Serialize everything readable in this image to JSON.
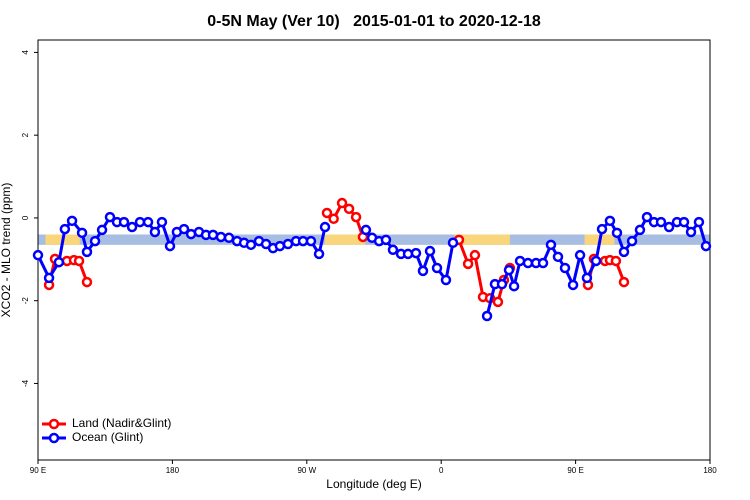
{
  "chart_data": {
    "type": "line",
    "title": "0-5N May (Ver 10)   2015-01-01 to 2020-12-18",
    "x_label": "Longitude (deg E)",
    "y_label": "XCO2 - MLO trend (ppm)",
    "xlim": [
      90,
      540
    ],
    "ylim": [
      -5.85,
      4.3
    ],
    "xticks": [
      {
        "value": 90,
        "label": "90 E"
      },
      180,
      {
        "value": 270,
        "label": "90 W"
      },
      {
        "value": 360,
        "label": "0"
      },
      {
        "value": 450,
        "label": "90 E"
      },
      {
        "value": 540,
        "label": "180"
      }
    ],
    "yticks": [
      4,
      2,
      0,
      -2,
      -4
    ],
    "legend": "bottom-left",
    "band": {
      "ylim": [
        -0.65,
        -0.4
      ],
      "color": "#a7bde1",
      "land_color": "#f9d67c",
      "land_segments": [
        [
          95,
          118
        ],
        [
          282,
          309
        ],
        [
          369,
          406
        ],
        [
          456,
          476
        ]
      ]
    },
    "series": [
      {
        "name": "Land (Nadir&Glint)",
        "color": "#ff0000",
        "x": [
          97.4,
          101.4,
          109.4,
          114.1,
          117.5,
          122.8,
          null,
          283.5,
          288,
          293.6,
          298.3,
          303,
          307.6,
          null,
          371.9,
          378,
          382.6,
          388,
          392.7,
          398,
          402,
          406,
          null,
          458.3,
          462.3,
          469.7,
          473,
          477,
          482.4
        ],
        "values": [
          -1.62,
          -0.99,
          -1.04,
          -1.02,
          -1.04,
          -1.55,
          null,
          0.12,
          -0.02,
          0.36,
          0.22,
          0.02,
          -0.46,
          null,
          -0.53,
          -1.11,
          -0.9,
          -1.91,
          -1.94,
          -2.03,
          -1.5,
          -1.21,
          null,
          -1.62,
          -0.99,
          -1.04,
          -1.02,
          -1.04,
          -1.55
        ]
      },
      {
        "name": "Ocean (Glint)",
        "color": "#0000ff",
        "x": [
          90,
          97.4,
          104,
          108,
          112.8,
          119.5,
          122.8,
          128.2,
          132.9,
          138.2,
          142.9,
          147.6,
          153,
          158.3,
          163.7,
          168.3,
          173,
          178.4,
          183,
          187.8,
          192.5,
          197.8,
          202.5,
          207.2,
          212.5,
          217.9,
          223.3,
          228,
          232.6,
          238,
          242.7,
          247.4,
          252,
          257.4,
          262.8,
          267.5,
          272.8,
          278.2,
          282.2,
          null,
          309.6,
          313.7,
          318.4,
          323,
          327.7,
          333.1,
          337.8,
          343.1,
          347.8,
          352.5,
          357.2,
          363.2,
          367.9,
          null,
          390.7,
          396,
          400.7,
          405.4,
          408.8,
          412.8,
          418.1,
          423.5,
          428.2,
          433.5,
          438.2,
          442.9,
          448.3,
          453,
          457.6,
          463.7,
          467.7,
          473,
          477.7,
          482.4,
          487.8,
          493.1,
          497.8,
          502.5,
          507.2,
          512.6,
          517.9,
          522.6,
          527.3,
          532.6,
          537.3
        ],
        "values": [
          -0.9,
          -1.45,
          -1.07,
          -0.27,
          -0.07,
          -0.36,
          -0.82,
          -0.56,
          -0.29,
          0.02,
          -0.1,
          -0.1,
          -0.22,
          -0.1,
          -0.1,
          -0.34,
          -0.1,
          -0.68,
          -0.34,
          -0.27,
          -0.39,
          -0.34,
          -0.41,
          -0.41,
          -0.46,
          -0.48,
          -0.56,
          -0.6,
          -0.65,
          -0.56,
          -0.63,
          -0.73,
          -0.68,
          -0.63,
          -0.56,
          -0.56,
          -0.56,
          -0.87,
          -0.22,
          null,
          -0.29,
          -0.48,
          -0.56,
          -0.53,
          -0.77,
          -0.87,
          -0.87,
          -0.85,
          -1.28,
          -0.8,
          -1.21,
          -1.5,
          -0.6,
          null,
          -2.37,
          -1.6,
          -1.6,
          -1.26,
          -1.65,
          -1.04,
          -1.09,
          -1.09,
          -1.09,
          -0.65,
          -0.94,
          -1.21,
          -1.62,
          -0.9,
          -1.45,
          -1.04,
          -0.27,
          -0.07,
          -0.36,
          -0.82,
          -0.56,
          -0.29,
          0.02,
          -0.1,
          -0.1,
          -0.22,
          -0.1,
          -0.1,
          -0.34,
          -0.1,
          -0.68
        ]
      }
    ]
  }
}
